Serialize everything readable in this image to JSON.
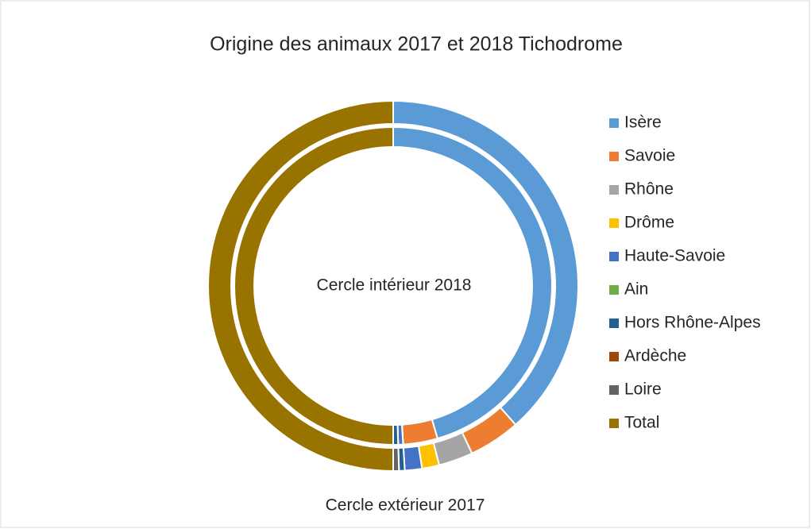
{
  "chart_data": {
    "type": "doughnut",
    "title": "Origine des animaux 2017 et 2018 Tichodrome",
    "annotations": [
      "Cercle intérieur 2018",
      "Cercle extérieur 2017"
    ],
    "categories": [
      "Isère",
      "Savoie",
      "Rhône",
      "Drôme",
      "Haute-Savoie",
      "Ain",
      "Hors Rhône-Alpes",
      "Ardèche",
      "Loire",
      "Total"
    ],
    "colors": [
      "#5b9bd5",
      "#ed7d31",
      "#a5a5a5",
      "#ffc000",
      "#4472c4",
      "#70ad47",
      "#255e91",
      "#9e480e",
      "#636363",
      "#997300"
    ],
    "series": [
      {
        "values": [
          77,
          9,
          6,
          3,
          3,
          0,
          1,
          0,
          1,
          100
        ]
      },
      {
        "values": [
          91,
          7,
          0,
          0,
          1,
          0,
          1,
          0,
          0,
          100
        ]
      }
    ],
    "legend": "right"
  }
}
